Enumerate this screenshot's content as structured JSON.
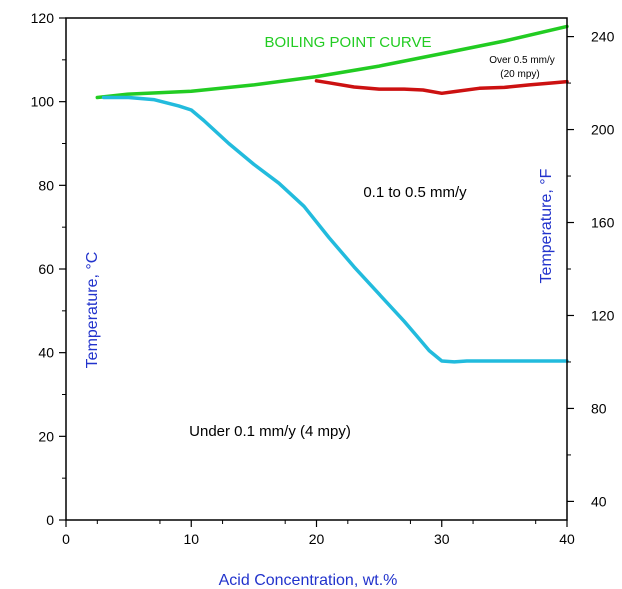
{
  "chart_data": {
    "type": "line",
    "title": "",
    "xlabel": "Acid Concentration, wt.%",
    "ylabel": "Temperature, °C",
    "y2label": "Temperature, °F",
    "xlim": [
      0,
      40
    ],
    "ylim": [
      0,
      120
    ],
    "y2lim": [
      32,
      248
    ],
    "xticks": [
      0,
      10,
      20,
      30,
      40
    ],
    "yticks": [
      0,
      20,
      40,
      60,
      80,
      100,
      120
    ],
    "y2ticks": [
      40,
      80,
      120,
      160,
      200,
      240
    ],
    "grid": false,
    "series": [
      {
        "name": "BOILING POINT CURVE",
        "color": "#22cc22",
        "x": [
          2.5,
          5,
          10,
          15,
          20,
          25,
          30,
          35,
          40
        ],
        "y": [
          101,
          101.8,
          102.5,
          104,
          106,
          108.5,
          111.5,
          114.5,
          118
        ]
      },
      {
        "name": "",
        "color": "#cc1111",
        "x": [
          20,
          21,
          23,
          25,
          27,
          28.5,
          30,
          31,
          33,
          35,
          37,
          39,
          40
        ],
        "y": [
          105,
          104.5,
          103.5,
          103,
          103,
          102.8,
          102,
          102.4,
          103.2,
          103.4,
          104,
          104.5,
          104.8
        ]
      },
      {
        "name": "",
        "color": "#22bbdd",
        "x": [
          3,
          5,
          7,
          9,
          10,
          11,
          13,
          15,
          17,
          19,
          21,
          23,
          25,
          27,
          28,
          29,
          30,
          31,
          32,
          35,
          40
        ],
        "y": [
          101,
          101,
          100.5,
          99,
          98,
          95.5,
          90,
          85,
          80.5,
          75,
          67.5,
          60.5,
          54,
          47.5,
          44,
          40.5,
          38,
          37.8,
          38,
          38,
          38
        ]
      }
    ],
    "annotations": [
      {
        "text": "BOILING POINT CURVE",
        "color": "#22cc22"
      },
      {
        "text": "Over 0.5 mm/y",
        "color": "#000000"
      },
      {
        "text": "(20 mpy)",
        "color": "#000000"
      },
      {
        "text": "0.1 to 0.5 mm/y",
        "color": "#000000"
      },
      {
        "text": "Under 0.1 mm/y (4 mpy)",
        "color": "#000000"
      }
    ],
    "axis_title_color": "#2233cc"
  }
}
